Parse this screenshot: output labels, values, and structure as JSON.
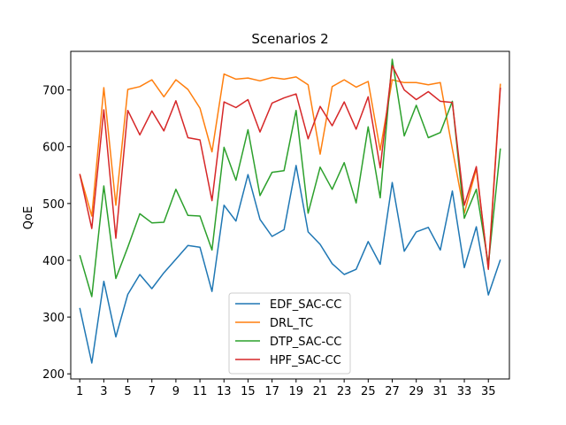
{
  "chart_data": {
    "type": "line",
    "title": "Scenarios 2",
    "xlabel": "",
    "ylabel": "QoE",
    "xlim": [
      0.25,
      36.75
    ],
    "ylim": [
      191,
      768
    ],
    "x": [
      1,
      2,
      3,
      4,
      5,
      6,
      7,
      8,
      9,
      10,
      11,
      12,
      13,
      14,
      15,
      16,
      17,
      18,
      19,
      20,
      21,
      22,
      23,
      24,
      25,
      26,
      27,
      28,
      29,
      30,
      31,
      32,
      33,
      34,
      35,
      36
    ],
    "xticks": [
      1,
      3,
      5,
      7,
      9,
      11,
      13,
      15,
      17,
      19,
      21,
      23,
      25,
      27,
      29,
      31,
      33,
      35
    ],
    "yticks": [
      200,
      300,
      400,
      500,
      600,
      700
    ],
    "grid": false,
    "legend_position": "lower center",
    "series": [
      {
        "name": "EDF_SAC-CC",
        "color": "#1f77b4",
        "values": [
          316,
          219,
          363,
          265,
          340,
          375,
          350,
          378,
          402,
          426,
          423,
          345,
          497,
          469,
          551,
          472,
          442,
          454,
          567,
          450,
          428,
          394,
          375,
          384,
          433,
          393,
          537,
          416,
          450,
          458,
          418,
          522,
          387,
          459,
          339,
          401
        ]
      },
      {
        "name": "DRL_TC",
        "color": "#ff7f0e",
        "values": [
          552,
          478,
          704,
          497,
          701,
          706,
          718,
          688,
          718,
          701,
          668,
          591,
          728,
          719,
          721,
          716,
          722,
          719,
          723,
          709,
          587,
          706,
          718,
          705,
          715,
          594,
          718,
          713,
          713,
          709,
          713,
          596,
          483,
          561,
          386,
          711
        ]
      },
      {
        "name": "DTP_SAC-CC",
        "color": "#2ca02c",
        "values": [
          409,
          336,
          531,
          368,
          423,
          482,
          466,
          467,
          525,
          479,
          478,
          418,
          599,
          541,
          630,
          514,
          555,
          558,
          664,
          483,
          564,
          525,
          572,
          501,
          635,
          510,
          754,
          619,
          673,
          616,
          625,
          680,
          474,
          525,
          393,
          597
        ]
      },
      {
        "name": "HPF_SAC-CC",
        "color": "#d62728",
        "values": [
          552,
          456,
          665,
          439,
          664,
          621,
          663,
          628,
          681,
          616,
          612,
          505,
          679,
          669,
          683,
          626,
          677,
          686,
          693,
          614,
          671,
          637,
          679,
          631,
          688,
          563,
          743,
          700,
          683,
          697,
          680,
          678,
          497,
          565,
          384,
          704
        ]
      }
    ]
  }
}
